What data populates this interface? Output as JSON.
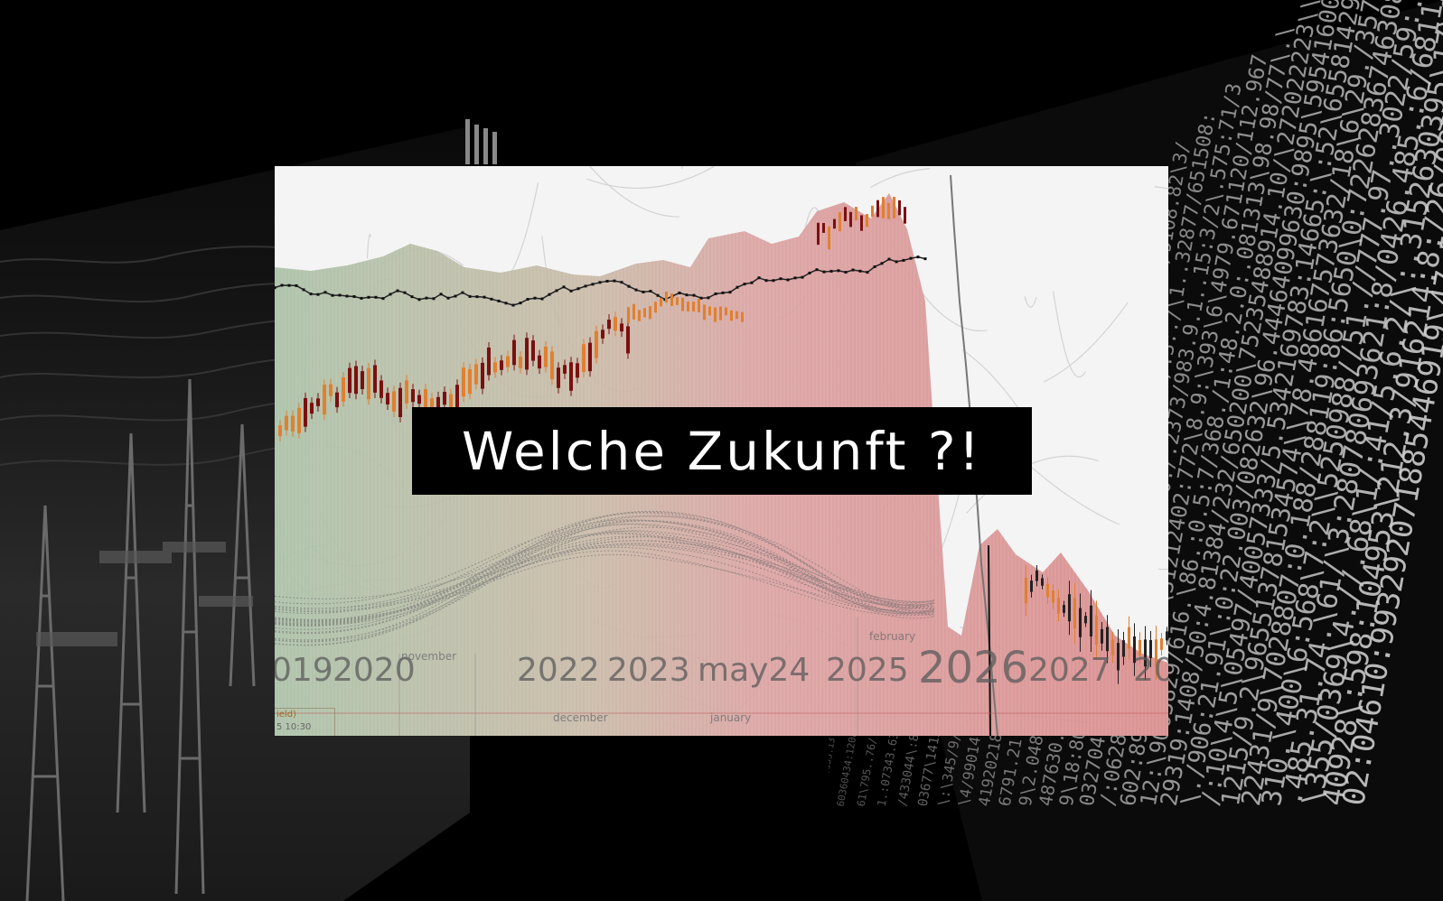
{
  "headline": "Welche Zukunft ?!",
  "chart_years": {
    "y2019": "019",
    "y2020": "2020",
    "y2022": "2022",
    "y2023": "2023",
    "ymay24": "may24",
    "y2025": "2025",
    "y2026": "2026",
    "y2027": "2027",
    "y2028": "20"
  },
  "chart_months": {
    "november": "november",
    "december": "december",
    "january": "january",
    "february": "february"
  },
  "legend": {
    "label": "ield)",
    "time": "5 10:30"
  },
  "colors": {
    "background": "#000000",
    "headline_bg": "#000000",
    "headline_text": "#ffffff",
    "area_red": "#d98a8a",
    "area_green": "#a9c0a6",
    "candle_dark": "#7a1010",
    "candle_orange": "#e08030"
  }
}
